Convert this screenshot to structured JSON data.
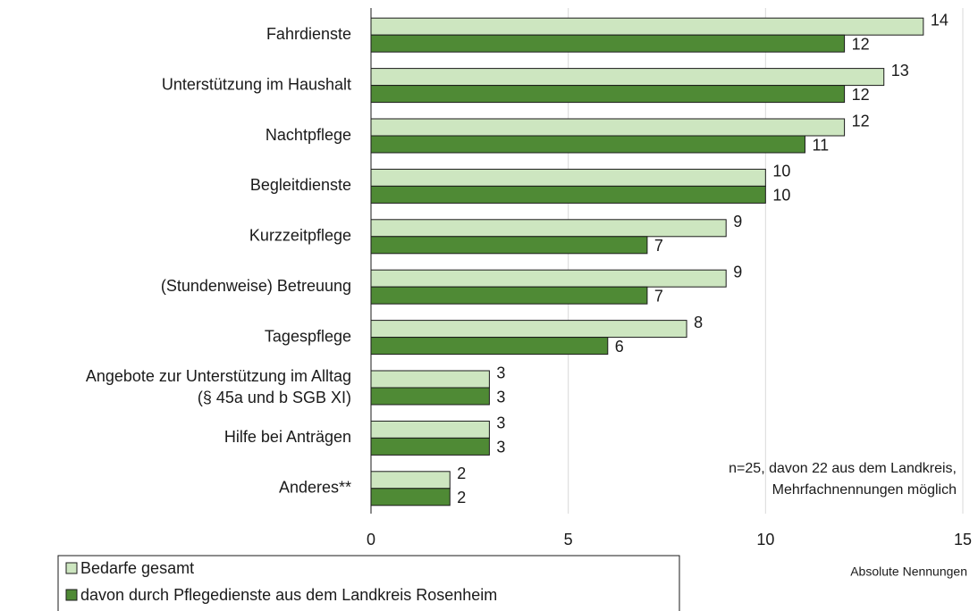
{
  "chart_data": {
    "type": "bar",
    "orientation": "horizontal",
    "categories": [
      "Fahrdienste",
      "Unterstützung im Haushalt",
      "Nachtpflege",
      "Begleitdienste",
      "Kurzzeitpflege",
      "(Stundenweise) Betreuung",
      "Tagespflege",
      "Angebote zur Unterstützung im Alltag\n(§ 45a und b SGB XI)",
      "Hilfe bei Anträgen",
      "Anderes**"
    ],
    "series": [
      {
        "name": "Bedarfe gesamt",
        "color": "#cde6c0",
        "values": [
          14,
          13,
          12,
          10,
          9,
          9,
          8,
          3,
          3,
          2
        ]
      },
      {
        "name": "davon durch Pflegedienste aus dem Landkreis Rosenheim",
        "color": "#4f8a35",
        "values": [
          12,
          12,
          11,
          10,
          7,
          7,
          6,
          3,
          3,
          2
        ]
      }
    ],
    "xlim": [
      0,
      15
    ],
    "xticks": [
      0,
      5,
      10,
      15
    ],
    "grid": true,
    "xlabel": "Absolute Nennungen",
    "annotation": "n=25, davon 22 aus dem Landkreis,\nMehrfachnennungen möglich",
    "legend": "bottom-left"
  }
}
